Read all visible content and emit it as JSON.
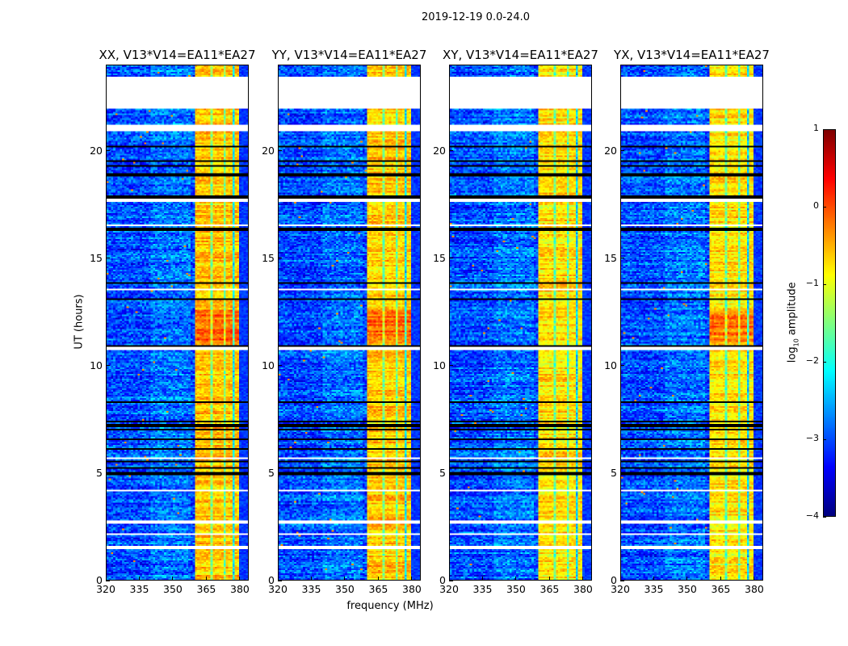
{
  "chart_data": {
    "type": "heatmap",
    "title": "2019-12-19 0.0-24.0",
    "xlabel": "frequency (MHz)",
    "ylabel": "UT (hours)",
    "xlim": [
      320,
      384
    ],
    "ylim": [
      0,
      24
    ],
    "xticks": [
      320,
      335,
      350,
      365,
      380
    ],
    "yticks": [
      0,
      5,
      10,
      15,
      20
    ],
    "panels": [
      {
        "title": "XX, V13*V14=EA11*EA27",
        "show_ylabel": true
      },
      {
        "title": "YY, V13*V14=EA11*EA27",
        "show_ylabel": false
      },
      {
        "title": "XY, V13*V14=EA11*EA27",
        "show_ylabel": false
      },
      {
        "title": "YX, V13*V14=EA11*EA27",
        "show_ylabel": false
      }
    ],
    "colormap": "jet",
    "clim": [
      -4,
      1
    ],
    "colorbar_ticks": [
      1,
      0,
      -1,
      -2,
      -3,
      -4
    ],
    "colorbar_label_prefix": "log",
    "colorbar_label_sub": "10",
    "colorbar_label_suffix": " amplitude",
    "background_level_log10": -3.0,
    "bright_band_mhz": [
      360.5,
      380
    ],
    "bright_band_level_log10": -0.6,
    "flagged_hours": [
      [
        21.95,
        23.45
      ],
      [
        20.95,
        21.2
      ],
      [
        17.6,
        17.75
      ],
      [
        13.5,
        13.6
      ],
      [
        10.75,
        10.85
      ],
      [
        5.6,
        5.7
      ],
      [
        1.45,
        1.6
      ],
      [
        2.1,
        2.2
      ],
      [
        2.65,
        2.75
      ],
      [
        4.1,
        4.2
      ],
      [
        15.2,
        15.25
      ],
      [
        16.5,
        16.6
      ]
    ],
    "black_line_hours": [
      20.2,
      19.55,
      19.3,
      18.95,
      18.85,
      17.85,
      16.35,
      13.85,
      13.1,
      10.9,
      8.3,
      7.4,
      7.2,
      7.0,
      6.55,
      6.1,
      5.5,
      5.2,
      5.0,
      4.9
    ]
  }
}
